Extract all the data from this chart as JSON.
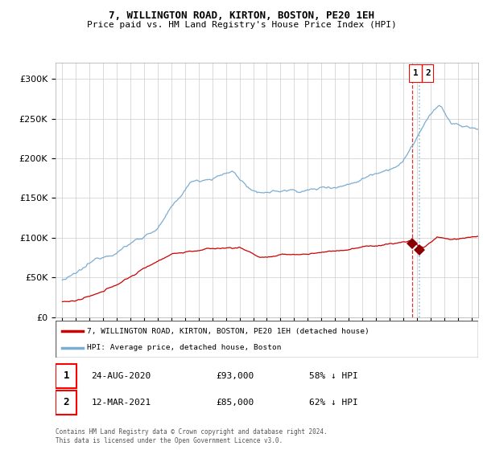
{
  "title": "7, WILLINGTON ROAD, KIRTON, BOSTON, PE20 1EH",
  "subtitle": "Price paid vs. HM Land Registry's House Price Index (HPI)",
  "legend_label_red": "7, WILLINGTON ROAD, KIRTON, BOSTON, PE20 1EH (detached house)",
  "legend_label_blue": "HPI: Average price, detached house, Boston",
  "transaction1_date": "24-AUG-2020",
  "transaction1_price": "£93,000",
  "transaction1_pct": "58% ↓ HPI",
  "transaction2_date": "12-MAR-2021",
  "transaction2_price": "£85,000",
  "transaction2_pct": "62% ↓ HPI",
  "footer": "Contains HM Land Registry data © Crown copyright and database right 2024.\nThis data is licensed under the Open Government Licence v3.0.",
  "red_color": "#cc0000",
  "blue_color": "#7aadd4",
  "marker_color": "#880000",
  "dashed_red_x": 2020.65,
  "dashed_blue_x": 2021.2,
  "marker1_x": 2020.65,
  "marker1_y": 93000,
  "marker2_x": 2021.2,
  "marker2_y": 85000,
  "ylim_max": 320000,
  "xlim_min": 1994.5,
  "xlim_max": 2025.5,
  "yticks": [
    0,
    50000,
    100000,
    150000,
    200000,
    250000,
    300000
  ],
  "xtick_start": 1995,
  "xtick_end": 2025,
  "bg_color": "#ffffff",
  "grid_color": "#cccccc",
  "title_fontsize": 9,
  "subtitle_fontsize": 8
}
